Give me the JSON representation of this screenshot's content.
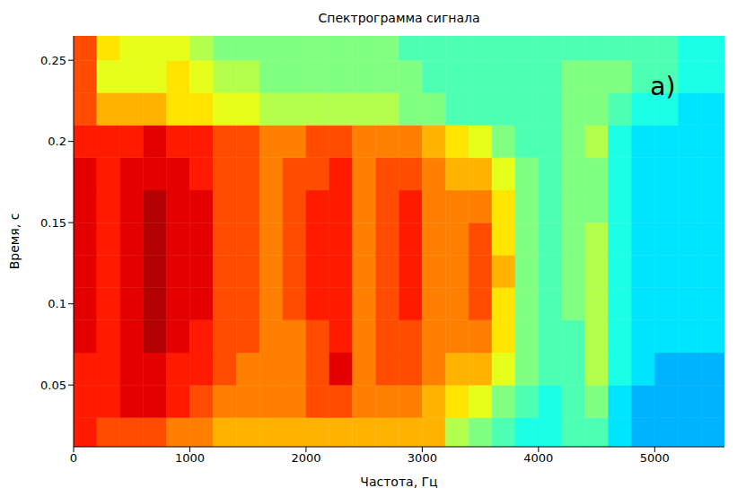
{
  "chart_data": {
    "type": "heatmap",
    "title": "Спектрограмма сигнала",
    "x_label": "Частота, Гц",
    "y_label": "Время, с",
    "xlim": [
      0,
      5600
    ],
    "ylim": [
      0.012,
      0.265
    ],
    "xticks": [
      0,
      1000,
      2000,
      3000,
      4000,
      5000
    ],
    "yticks": [
      0.05,
      0.1,
      0.15,
      0.2,
      0.25
    ],
    "grid": false,
    "annotations": [
      {
        "text": "a)",
        "x": 5070,
        "y": 0.234
      }
    ],
    "color_range": [
      0,
      10
    ],
    "x_edges": [
      0,
      200,
      400,
      600,
      800,
      1000,
      1200,
      1400,
      1600,
      1800,
      2000,
      2200,
      2400,
      2600,
      2800,
      3000,
      3200,
      3400,
      3600,
      3800,
      4000,
      4200,
      4400,
      4600,
      4800,
      5000,
      5200,
      5400,
      5600
    ],
    "y_edges": [
      0.012,
      0.03,
      0.05,
      0.07,
      0.09,
      0.11,
      0.13,
      0.15,
      0.17,
      0.19,
      0.21,
      0.23,
      0.25,
      0.265
    ],
    "cells": [
      [
        8.5,
        8,
        8,
        8,
        7.5,
        7.5,
        7,
        7,
        7,
        7,
        7,
        7,
        7,
        7,
        7,
        7,
        5.5,
        5,
        4.5,
        4,
        4,
        4.5,
        4.5,
        3.5,
        3,
        3,
        3,
        3
      ],
      [
        8.5,
        8.5,
        9,
        9,
        8.5,
        8,
        7.5,
        7.5,
        7.5,
        7.5,
        8,
        8,
        7.5,
        7.5,
        7.5,
        7,
        6.5,
        6,
        5,
        4.5,
        4,
        4.5,
        5,
        3.5,
        3,
        3,
        3,
        3
      ],
      [
        8.5,
        8.5,
        9,
        9,
        8.5,
        8.5,
        8,
        7.5,
        7.5,
        7.5,
        8,
        9,
        7.5,
        8,
        8,
        7.5,
        7,
        7,
        6,
        5,
        4.5,
        4.5,
        5.5,
        4,
        3.5,
        3,
        3,
        3
      ],
      [
        9,
        8.5,
        9,
        9.5,
        9,
        8.5,
        8,
        8,
        7.5,
        7.5,
        8,
        8.5,
        7.5,
        8,
        8,
        7.5,
        7.5,
        7.5,
        6.5,
        5,
        4.5,
        4.5,
        5.5,
        4,
        3.5,
        3.5,
        3.5,
        3.5
      ],
      [
        9,
        8.5,
        9,
        9.5,
        9,
        9,
        8,
        8,
        7.5,
        8,
        8.5,
        8.5,
        7.5,
        8,
        8.5,
        7.5,
        7.5,
        8,
        6.5,
        5,
        4.5,
        5,
        5.5,
        4,
        3.5,
        3.5,
        3.5,
        3.5
      ],
      [
        9,
        8.5,
        9,
        9.5,
        9,
        9,
        8,
        8,
        7.5,
        8,
        8.5,
        8.5,
        7.5,
        8,
        8.5,
        7.5,
        7.5,
        8,
        7,
        5,
        4.5,
        5,
        5.5,
        4,
        3.5,
        3.5,
        3.5,
        3.5
      ],
      [
        9,
        8.5,
        9,
        9.5,
        9,
        9,
        8,
        8,
        7.5,
        8,
        8.5,
        8.5,
        7.5,
        8,
        8.5,
        7.5,
        7.5,
        8,
        6.5,
        5,
        4.5,
        5,
        5.5,
        4,
        3.5,
        3.5,
        3.5,
        3.5
      ],
      [
        9,
        8.5,
        9,
        9.5,
        9,
        9,
        8,
        8,
        7.5,
        8,
        8.5,
        8.5,
        7.5,
        8,
        8.5,
        7.5,
        7.5,
        7.5,
        6.5,
        5,
        4.5,
        5,
        5,
        4,
        3.5,
        3.5,
        3.5,
        3.5
      ],
      [
        9,
        8.5,
        9,
        9,
        9,
        8.5,
        8,
        8,
        7.5,
        8,
        8,
        8.5,
        7.5,
        8,
        8,
        7.5,
        7,
        7,
        6,
        5,
        4.5,
        5,
        5,
        4,
        3.5,
        3.5,
        3.5,
        3.5
      ],
      [
        8.5,
        8.5,
        8.5,
        9,
        8.5,
        8.5,
        8,
        8,
        7.5,
        7.5,
        8,
        8,
        7.5,
        7.5,
        7.5,
        7,
        6.5,
        6,
        5,
        4.5,
        4.5,
        5,
        5.5,
        4,
        3.5,
        3.5,
        3.5,
        3.5
      ],
      [
        8,
        7,
        7,
        7,
        6.5,
        6.5,
        6,
        6,
        5.5,
        5.5,
        5.5,
        5.5,
        5.5,
        5.5,
        5,
        5,
        4.5,
        4.5,
        4.5,
        4.5,
        4.5,
        5,
        5,
        4.5,
        4,
        4,
        3.5,
        3.5
      ],
      [
        8,
        6,
        6,
        6,
        6.5,
        6,
        5.5,
        5.5,
        5,
        5,
        5,
        5,
        5,
        5,
        5,
        4.5,
        4.5,
        4.5,
        4.5,
        4.5,
        4.5,
        5,
        5,
        5,
        4.5,
        4.5,
        4,
        4
      ],
      [
        8,
        6.5,
        6,
        6,
        6,
        5.5,
        5,
        5,
        5,
        5,
        5,
        5,
        5,
        5,
        4.5,
        4.5,
        4.5,
        4.5,
        4.5,
        4.5,
        4.5,
        4.5,
        4.5,
        4.5,
        4.5,
        4.5,
        4,
        4
      ]
    ]
  }
}
